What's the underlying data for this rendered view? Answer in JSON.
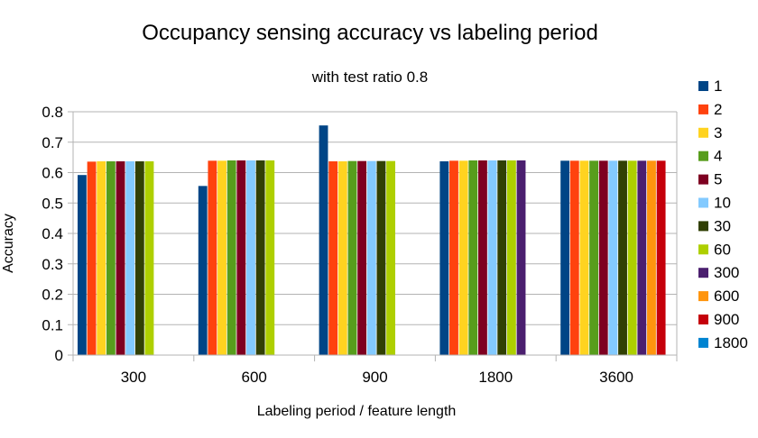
{
  "chart_data": {
    "type": "bar",
    "title": "Occupancy sensing accuracy vs labeling period",
    "subtitle": "with test ratio 0.8",
    "xlabel": "Labeling period / feature length",
    "ylabel": "Accuracy",
    "ylim": [
      0,
      0.8
    ],
    "yticks": [
      "0",
      "0.1",
      "0.2",
      "0.3",
      "0.4",
      "0.5",
      "0.6",
      "0.7",
      "0.8"
    ],
    "ytick_values": [
      0,
      0.1,
      0.2,
      0.3,
      0.4,
      0.5,
      0.6,
      0.7,
      0.8
    ],
    "grid": true,
    "legend_position": "right",
    "categories": [
      "300",
      "600",
      "900",
      "1800",
      "3600"
    ],
    "series": [
      {
        "name": "1",
        "color": "#004586",
        "values": [
          0.592,
          0.556,
          0.755,
          0.637,
          0.639
        ]
      },
      {
        "name": "2",
        "color": "#ff420e",
        "values": [
          0.636,
          0.639,
          0.637,
          0.639,
          0.639
        ]
      },
      {
        "name": "3",
        "color": "#ffd320",
        "values": [
          0.637,
          0.639,
          0.637,
          0.639,
          0.639
        ]
      },
      {
        "name": "4",
        "color": "#579d1c",
        "values": [
          0.637,
          0.64,
          0.638,
          0.64,
          0.639
        ]
      },
      {
        "name": "5",
        "color": "#7e0021",
        "values": [
          0.637,
          0.64,
          0.638,
          0.64,
          0.639
        ]
      },
      {
        "name": "10",
        "color": "#83caff",
        "values": [
          0.637,
          0.64,
          0.638,
          0.64,
          0.639
        ]
      },
      {
        "name": "30",
        "color": "#314004",
        "values": [
          0.637,
          0.64,
          0.638,
          0.64,
          0.639
        ]
      },
      {
        "name": "60",
        "color": "#aecf00",
        "values": [
          0.637,
          0.64,
          0.638,
          0.64,
          0.639
        ]
      },
      {
        "name": "300",
        "color": "#4b1f6f",
        "values": [
          null,
          null,
          null,
          0.64,
          0.639
        ]
      },
      {
        "name": "600",
        "color": "#ff950e",
        "values": [
          null,
          null,
          null,
          null,
          0.639
        ]
      },
      {
        "name": "900",
        "color": "#c5000b",
        "values": [
          null,
          null,
          null,
          null,
          0.639
        ]
      },
      {
        "name": "1800",
        "color": "#0084d1",
        "values": [
          null,
          null,
          null,
          null,
          null
        ]
      }
    ]
  }
}
